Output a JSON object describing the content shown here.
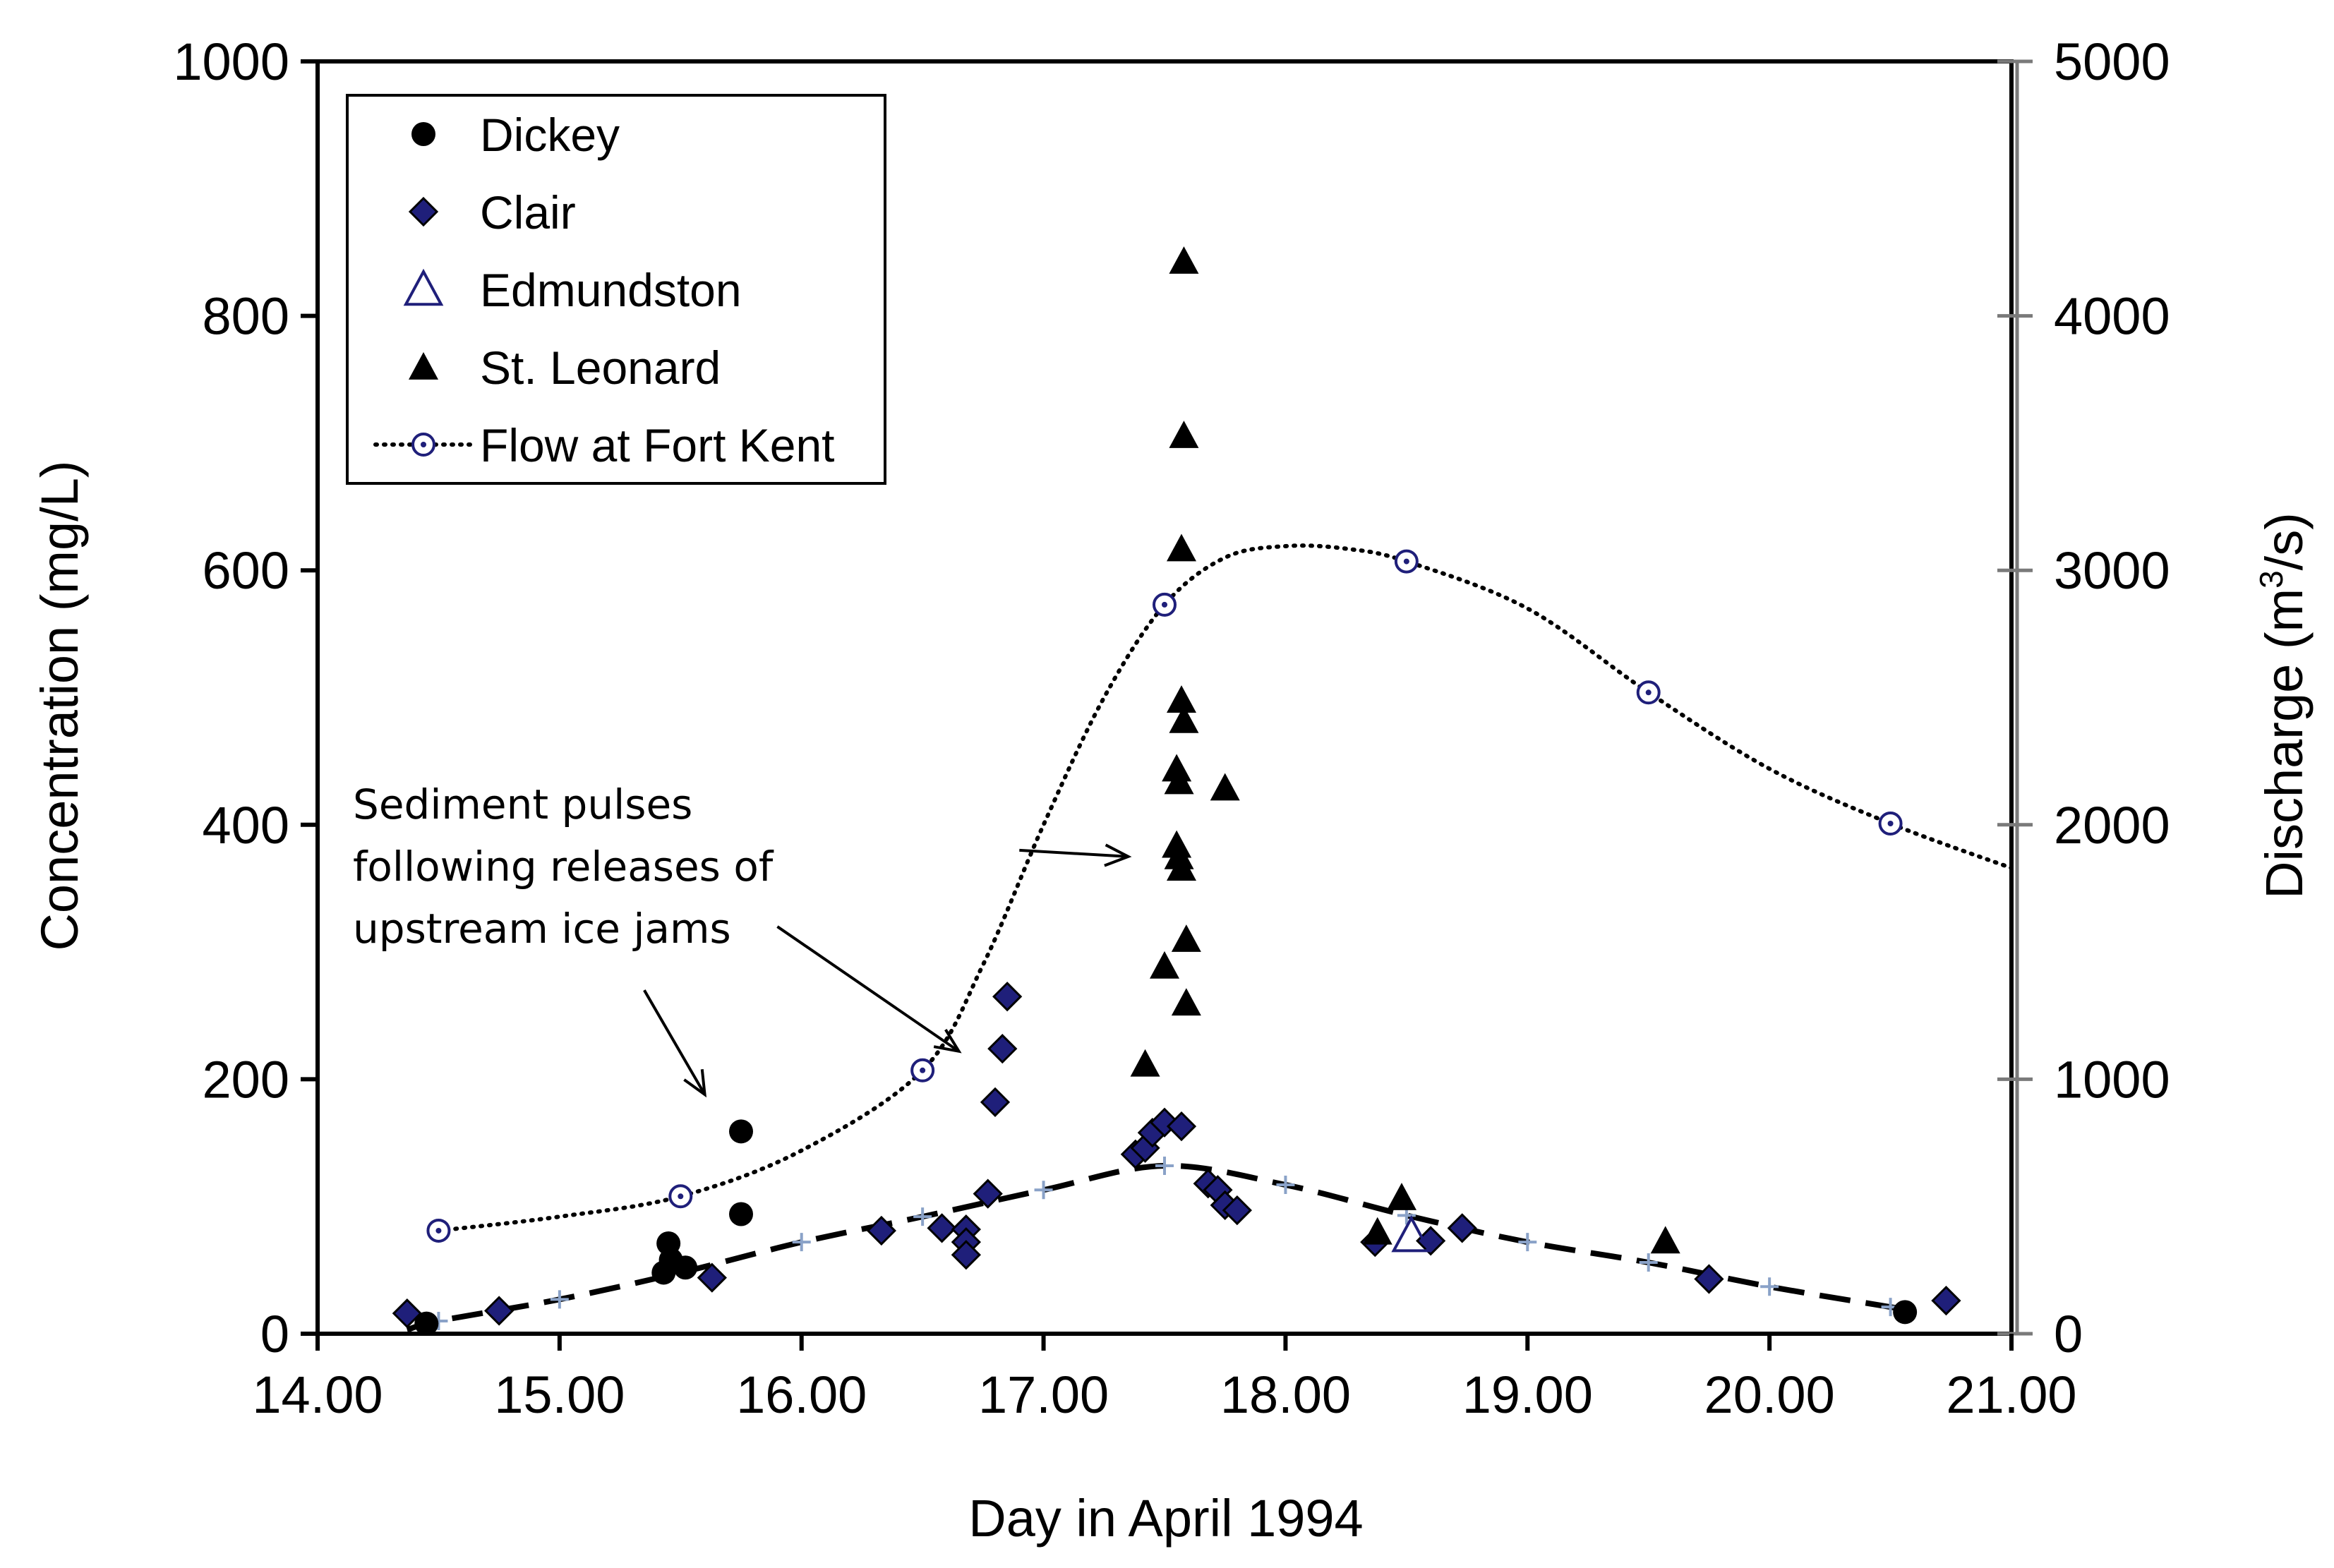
{
  "chart_data": {
    "type": "scatter",
    "title": "",
    "xlabel": "Day in April 1994",
    "ylabel": "Concentration  (mg/L)",
    "y2label_prefix": "Discharge  (m",
    "y2label_sup": "3",
    "y2label_suffix": "/s)",
    "xlim": [
      14,
      21
    ],
    "ylim": [
      0,
      1000
    ],
    "y2lim": [
      0,
      5000
    ],
    "x_ticks": [
      14,
      15,
      16,
      17,
      18,
      19,
      20,
      21
    ],
    "x_tick_labels": [
      "14.00",
      "15.00",
      "16.00",
      "17.00",
      "18.00",
      "19.00",
      "20.00",
      "21.00"
    ],
    "y_ticks": [
      0,
      200,
      400,
      600,
      800,
      1000
    ],
    "y_tick_labels": [
      "0",
      "200",
      "400",
      "600",
      "800",
      "1000"
    ],
    "y2_ticks": [
      0,
      1000,
      2000,
      3000,
      4000,
      5000
    ],
    "y2_tick_labels": [
      "0",
      "1000",
      "2000",
      "3000",
      "4000",
      "5000"
    ],
    "grid": false,
    "legend_position": "top-left",
    "series": [
      {
        "name": "Dickey",
        "marker": "circle",
        "color": "#000000",
        "axis": "left",
        "points": [
          [
            14.45,
            8
          ],
          [
            15.43,
            48
          ],
          [
            15.45,
            71
          ],
          [
            15.46,
            58
          ],
          [
            15.52,
            52
          ],
          [
            15.75,
            159
          ],
          [
            15.75,
            94
          ],
          [
            20.56,
            17
          ]
        ]
      },
      {
        "name": "Clair",
        "marker": "diamond",
        "color": "#1f1f7a",
        "axis": "left",
        "points": [
          [
            14.37,
            16
          ],
          [
            14.75,
            18
          ],
          [
            15.63,
            44
          ],
          [
            16.33,
            81
          ],
          [
            16.58,
            83
          ],
          [
            16.68,
            82
          ],
          [
            16.68,
            72
          ],
          [
            16.68,
            62
          ],
          [
            16.77,
            110
          ],
          [
            16.8,
            182
          ],
          [
            16.83,
            224
          ],
          [
            16.85,
            265
          ],
          [
            17.38,
            141
          ],
          [
            17.42,
            146
          ],
          [
            17.45,
            158
          ],
          [
            17.5,
            166
          ],
          [
            17.57,
            163
          ],
          [
            17.68,
            118
          ],
          [
            17.72,
            113
          ],
          [
            17.75,
            101
          ],
          [
            17.8,
            97
          ],
          [
            18.37,
            72
          ],
          [
            18.6,
            73
          ],
          [
            18.73,
            83
          ],
          [
            19.75,
            43
          ],
          [
            20.73,
            26
          ]
        ]
      },
      {
        "name": "Edmundston",
        "marker": "triangle-open",
        "color": "#1f1f7a",
        "axis": "left",
        "points": [
          [
            18.52,
            77
          ]
        ]
      },
      {
        "name": "St. Leonard",
        "marker": "triangle",
        "color": "#000000",
        "axis": "left",
        "points": [
          [
            17.58,
            843
          ],
          [
            17.58,
            706
          ],
          [
            17.57,
            617
          ],
          [
            17.57,
            498
          ],
          [
            17.58,
            482
          ],
          [
            17.55,
            444
          ],
          [
            17.56,
            434
          ],
          [
            17.75,
            429
          ],
          [
            17.55,
            384
          ],
          [
            17.56,
            375
          ],
          [
            17.57,
            366
          ],
          [
            17.59,
            310
          ],
          [
            17.5,
            289
          ],
          [
            17.59,
            260
          ],
          [
            17.42,
            212
          ],
          [
            18.38,
            80
          ],
          [
            18.48,
            107
          ],
          [
            19.57,
            73
          ]
        ]
      },
      {
        "name": "Flow at Fort Kent",
        "marker": "circle-dot",
        "color": "#1f1f7a",
        "axis": "right",
        "line": "dotted",
        "points": [
          [
            14.5,
            405
          ],
          [
            15.5,
            540
          ],
          [
            16.5,
            1035
          ],
          [
            17.5,
            2865
          ],
          [
            18.5,
            3035
          ],
          [
            19.5,
            2520
          ],
          [
            20.5,
            2005
          ]
        ],
        "curve": [
          [
            14.5,
            405
          ],
          [
            15.0,
            460
          ],
          [
            15.5,
            540
          ],
          [
            16.0,
            720
          ],
          [
            16.5,
            1035
          ],
          [
            16.75,
            1450
          ],
          [
            17.0,
            2000
          ],
          [
            17.25,
            2500
          ],
          [
            17.5,
            2865
          ],
          [
            17.75,
            3050
          ],
          [
            18.0,
            3095
          ],
          [
            18.25,
            3085
          ],
          [
            18.5,
            3035
          ],
          [
            19.0,
            2850
          ],
          [
            19.5,
            2520
          ],
          [
            20.0,
            2220
          ],
          [
            20.5,
            2005
          ],
          [
            21.0,
            1830
          ]
        ]
      },
      {
        "name": "Trend",
        "marker": "plus",
        "color": "#8aa2c8",
        "axis": "left",
        "line": "dashed",
        "legend": false,
        "points": [
          [
            14.5,
            10
          ],
          [
            15.0,
            27
          ],
          [
            16.0,
            72
          ],
          [
            16.5,
            92
          ],
          [
            17.0,
            113
          ],
          [
            17.5,
            132
          ],
          [
            18.0,
            117
          ],
          [
            18.5,
            93
          ],
          [
            19.0,
            72
          ],
          [
            19.5,
            56
          ],
          [
            20.0,
            37
          ],
          [
            20.5,
            21
          ]
        ],
        "curve": [
          [
            14.37,
            3
          ],
          [
            14.5,
            10
          ],
          [
            15.0,
            27
          ],
          [
            15.5,
            48
          ],
          [
            16.0,
            72
          ],
          [
            16.5,
            92
          ],
          [
            17.0,
            113
          ],
          [
            17.5,
            132
          ],
          [
            18.0,
            117
          ],
          [
            18.5,
            93
          ],
          [
            19.0,
            72
          ],
          [
            19.5,
            56
          ],
          [
            20.0,
            37
          ],
          [
            20.5,
            21
          ],
          [
            20.6,
            18
          ]
        ]
      }
    ],
    "annotations": [
      {
        "lines": [
          "Sediment pulses",
          "following releases of",
          "upstream ice jams"
        ],
        "arrows": [
          {
            "from": [
              15.35,
              270
            ],
            "to": [
              15.6,
              188
            ]
          },
          {
            "from": [
              16.9,
              380
            ],
            "to": [
              17.35,
              375
            ]
          },
          {
            "from": [
              15.9,
              320
            ],
            "to": [
              16.65,
              222
            ]
          }
        ]
      }
    ]
  }
}
